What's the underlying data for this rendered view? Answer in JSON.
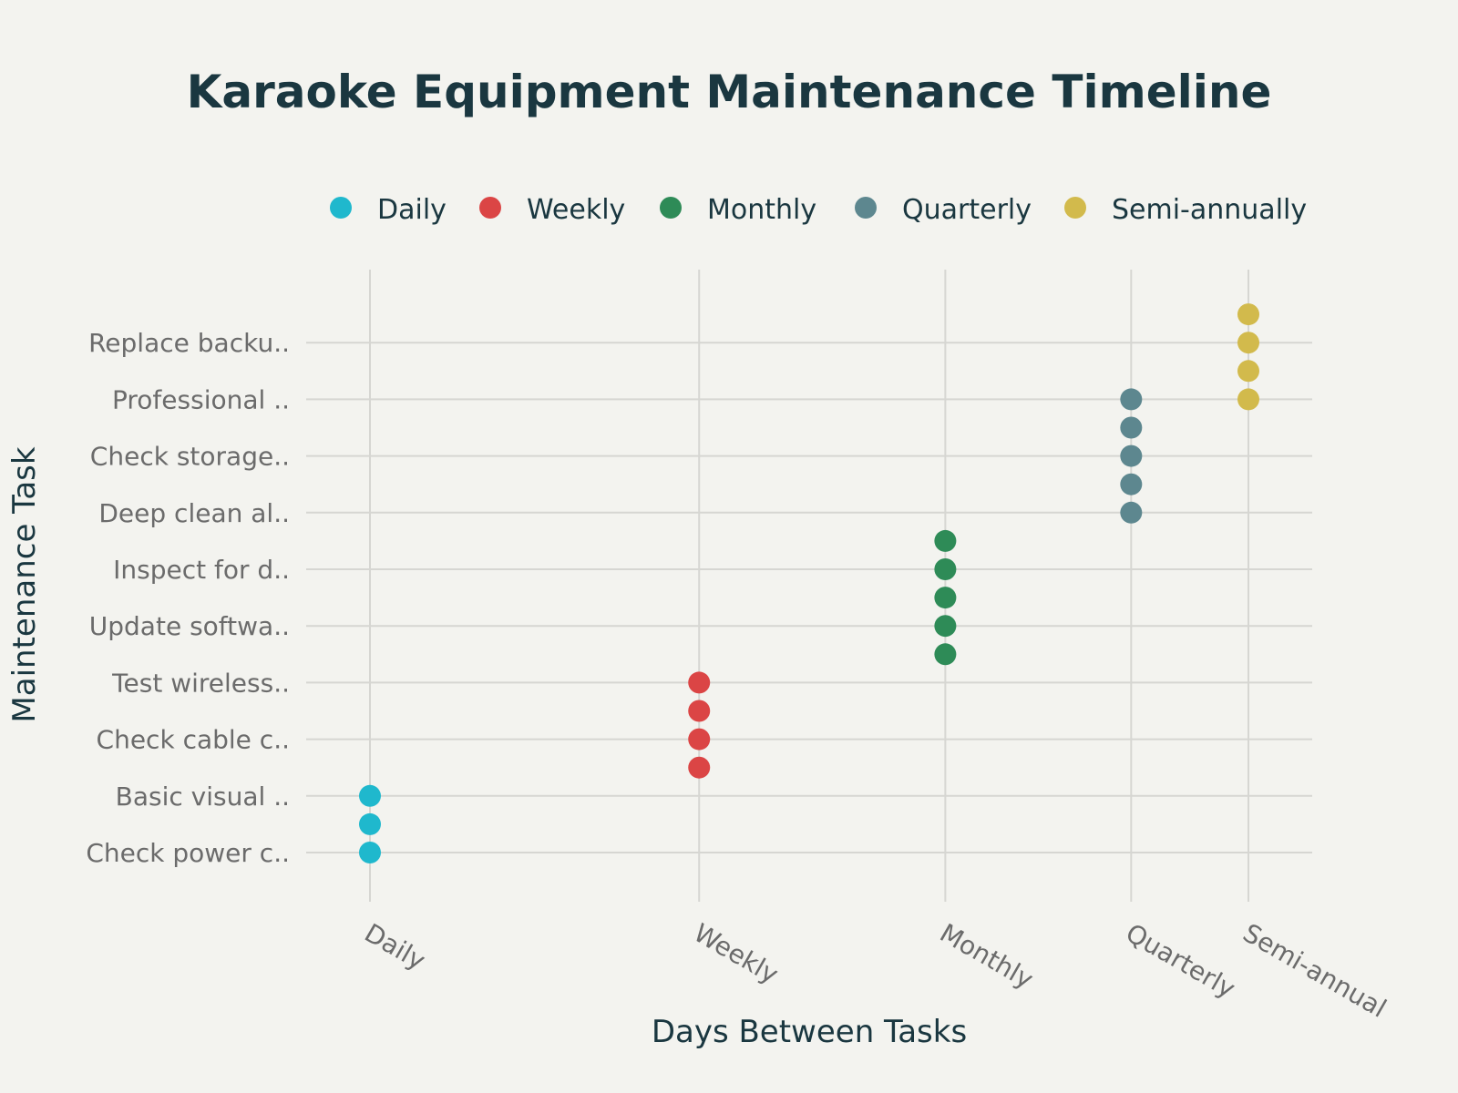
{
  "chart_data": {
    "type": "scatter",
    "title": "Karaoke Equipment Maintenance Timeline",
    "xlabel": "Days Between Tasks",
    "ylabel": "Maintenance Task",
    "x_tick_labels": [
      "Daily",
      "Weekly",
      "Monthly",
      "Quarterly",
      "Semi-annual"
    ],
    "x_tick_values": [
      1,
      7,
      30,
      90,
      180
    ],
    "x_scale": "log",
    "y_tick_labels": [
      "Check power c..",
      "Basic visual ..",
      "Check cable c..",
      "Test wireless..",
      "Update softwa..",
      "Inspect for d..",
      "Deep clean al..",
      "Check storage..",
      "Professional ..",
      "Replace backu.."
    ],
    "legend_position": "top",
    "series": [
      {
        "name": "Daily",
        "color": "#1fb8cd",
        "x": 1,
        "y": [
          0,
          0.5,
          1
        ]
      },
      {
        "name": "Weekly",
        "color": "#db4545",
        "x": 7,
        "y": [
          1.5,
          2,
          2.5,
          3
        ]
      },
      {
        "name": "Monthly",
        "color": "#2e8b57",
        "x": 30,
        "y": [
          3.5,
          4,
          4.5,
          5,
          5.5
        ]
      },
      {
        "name": "Quarterly",
        "color": "#5d878f",
        "x": 90,
        "y": [
          6,
          6.5,
          7,
          7.5,
          8
        ]
      },
      {
        "name": "Semi-annually",
        "color": "#d2ba4c",
        "x": 180,
        "y": [
          8,
          8.5,
          9,
          9.5
        ]
      }
    ]
  }
}
